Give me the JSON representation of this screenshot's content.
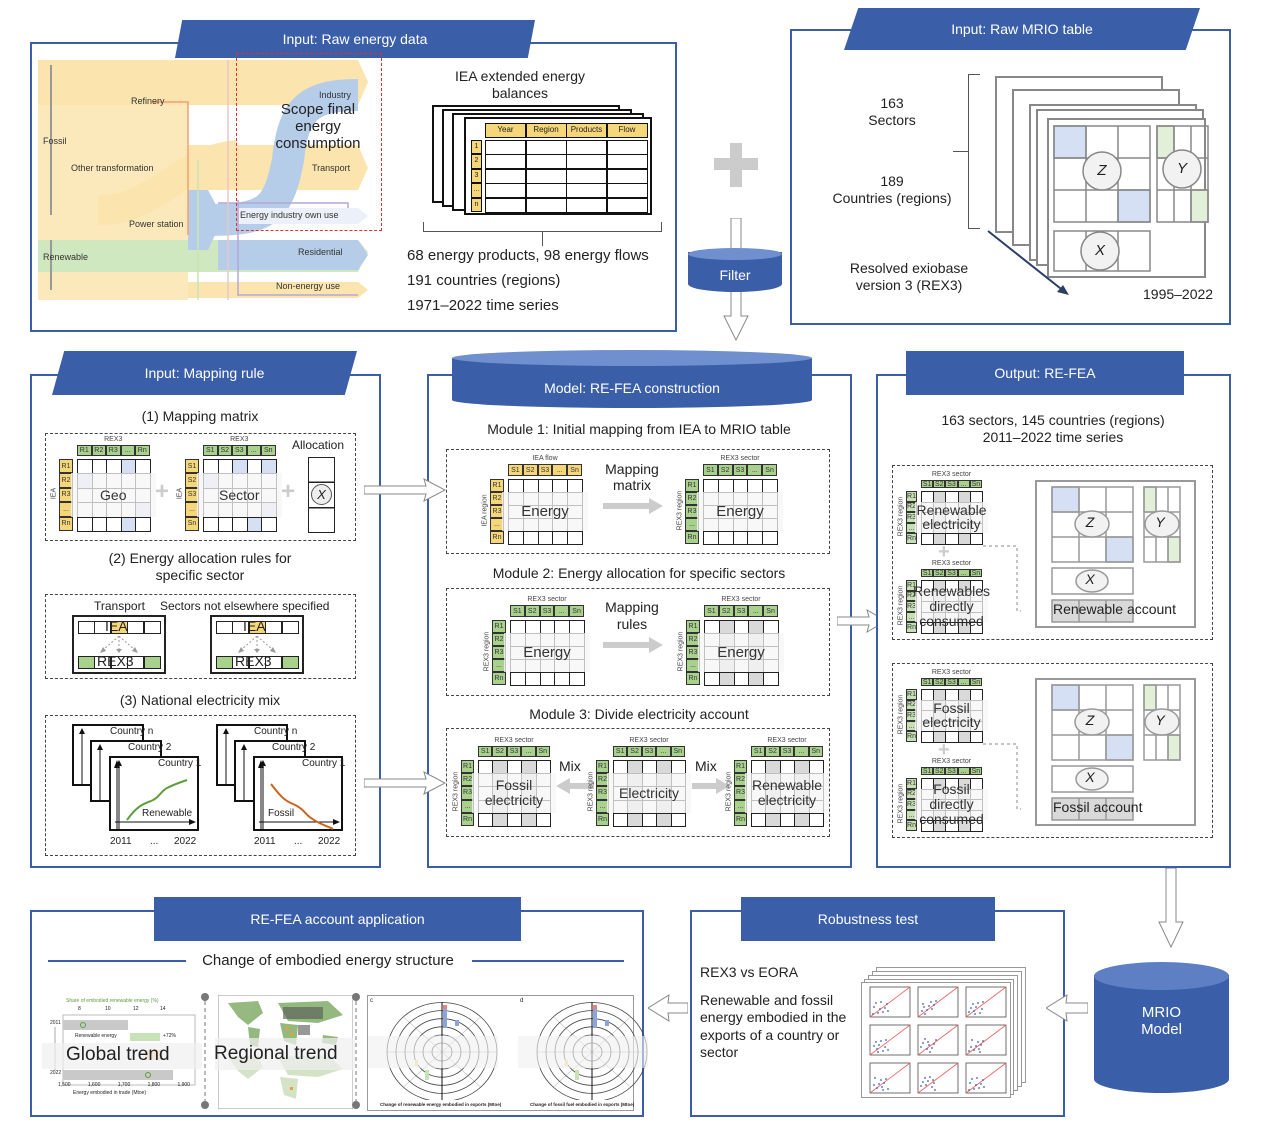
{
  "labels": {
    "s": [
      "S1",
      "S2",
      "S3",
      "...",
      "Sn"
    ],
    "r": [
      "R1",
      "R2",
      "R3",
      "...",
      "Rn"
    ]
  },
  "colors": {
    "brand_blue": "#3a5ea8",
    "iea_yellow": "#f5d77a",
    "rex3_green": "#a9d18e",
    "cell_blue": "#d6e0f5",
    "shade_gray": "#d9d9d9",
    "renewable_line": "#5a9e3a",
    "fossil_line": "#c8641e"
  },
  "raw_energy": {
    "title": "Input: Raw energy data",
    "sankey": {
      "refinery": "Refinery",
      "fossil": "Fossil",
      "other_transformation": "Other transformation",
      "power_station": "Power station",
      "renewable": "Renewable",
      "industry": "Industry",
      "scope": "Scope final energy consumption",
      "transport": "Transport",
      "energy_own_use": "Energy industry own use",
      "residential": "Residential",
      "non_energy_use": "Non-energy use"
    },
    "table_title": "IEA extended energy balances",
    "columns": [
      "Year",
      "Region",
      "Products",
      "Flow"
    ],
    "rows": [
      "1",
      "2",
      "3",
      "...",
      "n"
    ],
    "stats": [
      "68 energy products, 98 energy flows",
      "191 countries (regions)",
      "1971–2022 time series"
    ]
  },
  "filter": "Filter",
  "mrio_input": {
    "title": "Input: Raw MRIO table",
    "sectors_n": "163",
    "sectors": "Sectors",
    "countries_n": "189",
    "countries": "Countries (regions)",
    "source": "Resolved exiobase version 3 (REX3)",
    "years": "1995–2022",
    "z": "Z",
    "y": "Y",
    "x": "X"
  },
  "mapping_rule": {
    "title": "Input: Mapping rule",
    "s1_title": "(1) Mapping matrix",
    "rex3": "REX3",
    "iea": "IEA",
    "geo": "Geo",
    "sector": "Sector",
    "allocation": "Allocation",
    "x": "X",
    "s2_title": "(2) Energy allocation rules for specific sector",
    "transport": "Transport",
    "nes": "Sectors not elsewhere specified",
    "iea_cell": "IEA",
    "rex3_cell": "REX3",
    "s3_title": "(3) National electricity mix",
    "country_n": "Country n",
    "country_2": "Country 2",
    "country_1": "Country 1",
    "renewable": "Renewable",
    "fossil": "Fossil",
    "year_start": "2011",
    "ellipsis": "...",
    "year_end": "2022"
  },
  "model": {
    "title": "Model: RE-FEA construction",
    "m1_title": "Module 1: Initial mapping from IEA to MRIO table",
    "iea_flow": "IEA flow",
    "rex3_sector": "REX3 sector",
    "iea_region": "IEA region",
    "rex3_region": "REX3 region",
    "energy": "Energy",
    "mapping_matrix": "Mapping matrix",
    "m2_title": "Module 2: Energy allocation for specific sectors",
    "mapping_rules": "Mapping rules",
    "m3_title": "Module 3: Divide electricity account",
    "fossil_electricity": "Fossil electricity",
    "electricity": "Electricity",
    "renewable_electricity": "Renewable electricity",
    "mix": "Mix"
  },
  "output": {
    "title": "Output: RE-FEA",
    "line1": "163 sectors, 145 countries (regions)",
    "line2": "2011–2022 time series",
    "rex3_sector": "REX3 sector",
    "rex3_region": "REX3 region",
    "renewable_electricity": "Renewable electricity",
    "renewables_direct": "Renewables directly consumed",
    "renewable_account": "Renewable account",
    "fossil_electricity": "Fossil electricity",
    "fossil_direct": "Fossil directly consumed",
    "fossil_account": "Fossil account",
    "z": "Z",
    "y": "Y",
    "x": "X"
  },
  "application": {
    "title": "RE-FEA account application",
    "subtitle": "Change of embodied energy structure",
    "global": {
      "label": "Global trend",
      "top_axis": "Share of embodied renewable energy (%)",
      "top_ticks": [
        "8",
        "10",
        "12",
        "14"
      ],
      "years": [
        "2011",
        "2022"
      ],
      "bar_label": "Renewable energy",
      "change": "+72%",
      "x_ticks": [
        "1,500",
        "1,600",
        "1,700",
        "1,800",
        "1,900"
      ],
      "x_axis": "Energy embodied in trade (Mtoe)"
    },
    "regional": {
      "label": "Regional trend"
    },
    "polar": [
      {
        "panel": "c",
        "caption": "Change of renewable energy embodied in exports (Mtoe)"
      },
      {
        "panel": "d",
        "caption": "Change of fossil fuel embodied in exports (Mtoe)"
      }
    ]
  },
  "robustness": {
    "title": "Robustness test",
    "line1": "REX3 vs EORA",
    "line2": "Renewable and fossil energy embodied in the exports of a country or sector"
  },
  "mrio_model": {
    "line1": "MRIO",
    "line2": "Model"
  }
}
